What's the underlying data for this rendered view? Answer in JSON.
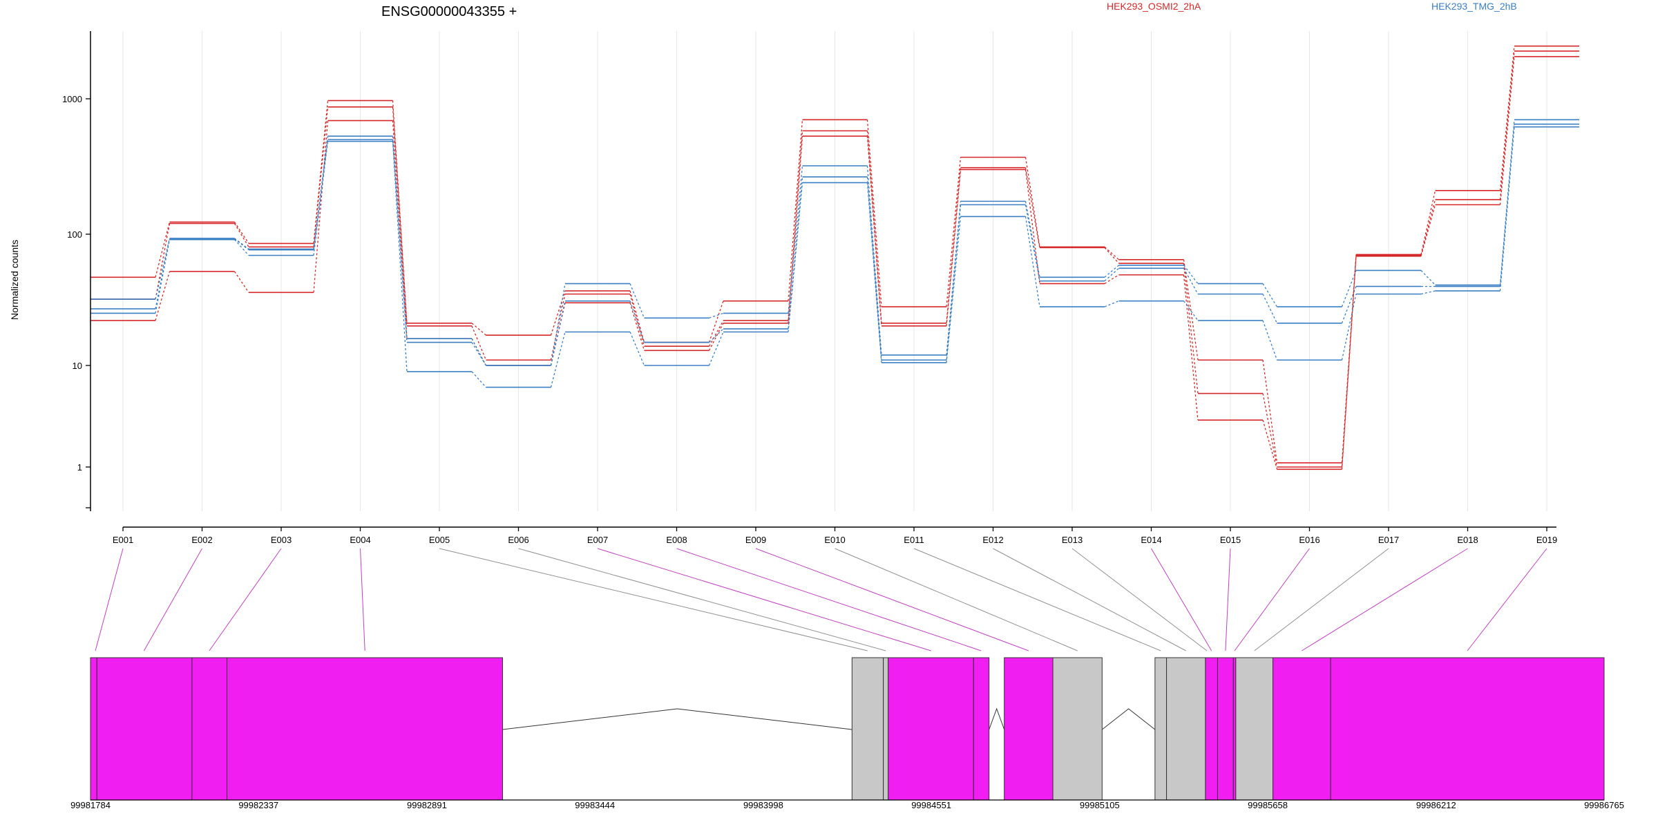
{
  "chart_data": {
    "type": "line",
    "title": "ENSG00000043355 +",
    "ylabel": "Normalized counts",
    "yscale": "log",
    "ylim": [
      0.5,
      3000
    ],
    "yticks": [
      "1",
      "10",
      "100",
      "1000"
    ],
    "grid": "vertical dashed at exon centers",
    "legend": [
      {
        "name": "HEK293_OSMI2_2hA",
        "color": "#d62728"
      },
      {
        "name": "HEK293_TMG_2hB",
        "color": "#3a7fc4"
      }
    ],
    "categories": [
      "E001",
      "E002",
      "E003",
      "E004",
      "E005",
      "E006",
      "E007",
      "E008",
      "E009",
      "E010",
      "E011",
      "E012",
      "E013",
      "E014",
      "E015",
      "E016",
      "E017",
      "E018",
      "E019"
    ],
    "series": [
      {
        "group": "HEK293_OSMI2_2hA",
        "color": "#d62728",
        "values": [
          47,
          123,
          85,
          970,
          21,
          17,
          37,
          15,
          31,
          700,
          28,
          370,
          80,
          64,
          11,
          1.1,
          70,
          210,
          2450
        ]
      },
      {
        "group": "HEK293_OSMI2_2hA",
        "color": "#d62728",
        "values": [
          32,
          120,
          80,
          870,
          20,
          11,
          35,
          14,
          22,
          580,
          21,
          310,
          79,
          60,
          5.3,
          1.0,
          69,
          180,
          2250
        ]
      },
      {
        "group": "HEK293_OSMI2_2hA",
        "color": "#d62728",
        "values": [
          22,
          52,
          36,
          690,
          16,
          10,
          30,
          13,
          21,
          530,
          20,
          300,
          42,
          49,
          2.9,
          0.95,
          68,
          165,
          2050
        ]
      },
      {
        "group": "HEK293_TMG_2hB",
        "color": "#3a7fc4",
        "values": [
          32,
          93,
          77,
          530,
          16,
          10,
          42,
          23,
          25,
          320,
          12,
          175,
          47,
          58,
          42,
          28,
          53,
          41,
          700
        ]
      },
      {
        "group": "HEK293_TMG_2hB",
        "color": "#3a7fc4",
        "values": [
          27,
          92,
          76,
          500,
          15,
          10,
          31,
          15,
          19,
          265,
          11,
          165,
          44,
          55,
          35,
          21,
          40,
          40,
          650
        ]
      },
      {
        "group": "HEK293_TMG_2hB",
        "color": "#3a7fc4",
        "values": [
          25,
          91,
          69,
          485,
          8.7,
          6.1,
          18,
          10,
          18,
          240,
          10.5,
          135,
          28,
          31,
          22,
          11,
          35,
          37,
          620
        ]
      }
    ],
    "genome_track": {
      "coordinates": [
        "99981784",
        "99982337",
        "99982891",
        "99983444",
        "99983998",
        "99984551",
        "99985105",
        "99985658",
        "99986212",
        "99986765"
      ],
      "range": [
        99981784,
        99986765
      ],
      "blocks": [
        {
          "start": 99981784,
          "end": 99981805,
          "color": "#f01ef0"
        },
        {
          "start": 99981805,
          "end": 99982118,
          "color": "#f01ef0"
        },
        {
          "start": 99982118,
          "end": 99982233,
          "color": "#f01ef0"
        },
        {
          "start": 99982233,
          "end": 99983140,
          "color": "#f01ef0"
        },
        {
          "start": 99984290,
          "end": 99984393,
          "color": "#c8c8c8"
        },
        {
          "start": 99984393,
          "end": 99984409,
          "color": "#c8c8c8"
        },
        {
          "start": 99984409,
          "end": 99984690,
          "color": "#f01ef0"
        },
        {
          "start": 99984690,
          "end": 99984741,
          "color": "#f01ef0"
        },
        {
          "start": 99984791,
          "end": 99984951,
          "color": "#f01ef0"
        },
        {
          "start": 99984951,
          "end": 99985113,
          "color": "#c8c8c8"
        },
        {
          "start": 99985287,
          "end": 99985325,
          "color": "#c8c8c8"
        },
        {
          "start": 99985325,
          "end": 99985453,
          "color": "#c8c8c8"
        },
        {
          "start": 99985453,
          "end": 99985493,
          "color": "#f01ef0"
        },
        {
          "start": 99985493,
          "end": 99985545,
          "color": "#f01ef0"
        },
        {
          "start": 99985545,
          "end": 99985553,
          "color": "#f01ef0"
        },
        {
          "start": 99985553,
          "end": 99985675,
          "color": "#c8c8c8"
        },
        {
          "start": 99985675,
          "end": 99985865,
          "color": "#f01ef0"
        },
        {
          "start": 99985865,
          "end": 99986765,
          "color": "#f01ef0"
        }
      ],
      "introns": [
        {
          "start": 99983140,
          "end": 99984290
        },
        {
          "start": 99984741,
          "end": 99984791
        },
        {
          "start": 99985113,
          "end": 99985287
        }
      ],
      "connectors": [
        {
          "exon": "E001",
          "pos": 99981800,
          "color": "#c040c0"
        },
        {
          "exon": "E002",
          "pos": 99981960,
          "color": "#c040c0"
        },
        {
          "exon": "E003",
          "pos": 99982175,
          "color": "#c040c0"
        },
        {
          "exon": "E004",
          "pos": 99982687,
          "color": "#c040c0"
        },
        {
          "exon": "E005",
          "pos": 99984341,
          "color": "#909090"
        },
        {
          "exon": "E006",
          "pos": 99984401,
          "color": "#909090"
        },
        {
          "exon": "E007",
          "pos": 99984550,
          "color": "#c040c0"
        },
        {
          "exon": "E008",
          "pos": 99984715,
          "color": "#c040c0"
        },
        {
          "exon": "E009",
          "pos": 99984871,
          "color": "#c040c0"
        },
        {
          "exon": "E010",
          "pos": 99985032,
          "color": "#909090"
        },
        {
          "exon": "E011",
          "pos": 99985306,
          "color": "#909090"
        },
        {
          "exon": "E012",
          "pos": 99985389,
          "color": "#909090"
        },
        {
          "exon": "E013",
          "pos": 99985458,
          "color": "#909090"
        },
        {
          "exon": "E014",
          "pos": 99985473,
          "color": "#c040c0"
        },
        {
          "exon": "E015",
          "pos": 99985519,
          "color": "#c040c0"
        },
        {
          "exon": "E016",
          "pos": 99985549,
          "color": "#c040c0"
        },
        {
          "exon": "E017",
          "pos": 99985614,
          "color": "#909090"
        },
        {
          "exon": "E018",
          "pos": 99985770,
          "color": "#c040c0"
        },
        {
          "exon": "E019",
          "pos": 99986315,
          "color": "#c040c0"
        }
      ]
    }
  }
}
